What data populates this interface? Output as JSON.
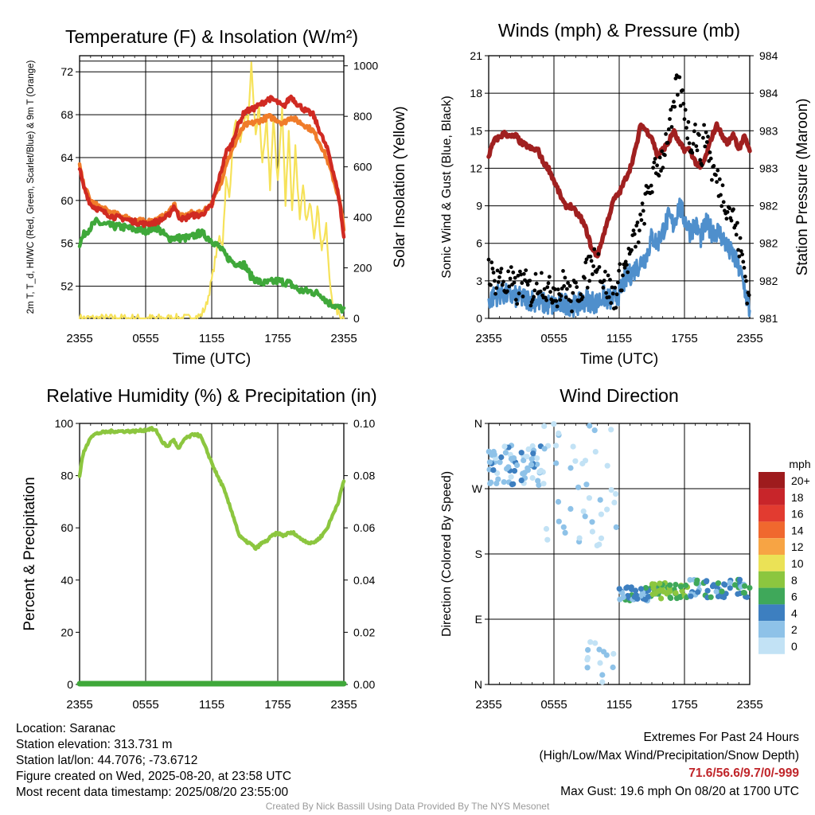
{
  "chart_data": [
    {
      "type": "line",
      "title": "Temperature (F) & Insolation (W/m²)",
      "xlabel": "Time (UTC)",
      "ylabel_left": "2m T, T_d, HI/WC (Red, Green, Scarlet/Blue) & 9m T (Orange)",
      "ylabel_right": "Solar Insolation (Yellow)",
      "x_ticks": [
        "2355",
        "0555",
        "1155",
        "1755",
        "2355"
      ],
      "y_ticks": [
        52,
        56,
        60,
        64,
        68,
        72
      ],
      "y2_ticks": [
        0,
        200,
        400,
        600,
        800,
        1000
      ],
      "ylim": [
        49,
        73.5
      ],
      "y2lim": [
        0,
        1040
      ],
      "x_hours_range": [
        0,
        24
      ],
      "colors": {
        "temp": "#d02a22",
        "temp9m": "#f07c2a",
        "dewpoint": "#3fa83a",
        "solar": "#f6e25a"
      },
      "series": [
        {
          "name": "2m T",
          "color": "#d02a22",
          "x": [
            0,
            0.3,
            1,
            2,
            3,
            4,
            5,
            6,
            7,
            8,
            8.6,
            9,
            9.5,
            10,
            11,
            12,
            12.8,
            13.3,
            13.8,
            14.3,
            15,
            15.7,
            16.5,
            17.2,
            17.8,
            18.5,
            19.2,
            19.8,
            20.5,
            21.2,
            22,
            22.6,
            23.2,
            23.6,
            24
          ],
          "y": [
            63,
            61.5,
            59.6,
            59,
            58.5,
            58.3,
            58,
            57.8,
            58,
            58.5,
            59.5,
            58.5,
            58.2,
            58.6,
            58.6,
            59.5,
            62.5,
            64.5,
            65.2,
            66.8,
            68.3,
            68.5,
            69,
            69.5,
            69.3,
            68.7,
            69.7,
            69,
            68.4,
            68,
            66,
            64.5,
            62,
            60,
            56.5
          ]
        },
        {
          "name": "9m T",
          "color": "#f07c2a",
          "x": [
            0,
            0.3,
            1,
            2,
            3,
            4,
            5,
            6,
            7,
            8,
            8.6,
            9,
            9.5,
            10,
            11,
            12,
            12.8,
            13.3,
            13.8,
            14.3,
            15,
            15.7,
            16.5,
            17.2,
            17.8,
            18.5,
            19.2,
            19.8,
            20.5,
            21.2,
            22,
            22.6,
            23.2,
            23.6,
            24
          ],
          "y": [
            63.2,
            61.7,
            59.9,
            59.3,
            58.8,
            58.5,
            58.2,
            58,
            58.2,
            58.7,
            59.7,
            58.7,
            58.4,
            58.8,
            58.8,
            59.7,
            61.5,
            63.5,
            64.5,
            65.8,
            67,
            67.2,
            67.5,
            67.8,
            67.6,
            67.2,
            67.8,
            67.4,
            67,
            66.5,
            65,
            63.5,
            61.5,
            60,
            57.5
          ]
        },
        {
          "name": "2m Td",
          "color": "#3fa83a",
          "x": [
            0,
            0.5,
            1,
            1.5,
            2,
            3,
            4,
            5,
            6,
            7,
            8,
            9,
            10,
            11,
            12,
            12.8,
            13.3,
            14,
            15,
            15.5,
            16,
            16.5,
            17,
            18,
            19,
            20,
            21,
            22,
            22.5,
            23,
            23.5,
            24
          ],
          "y": [
            56,
            57,
            57.5,
            58,
            57.8,
            57.6,
            57.5,
            57.3,
            57.2,
            57.5,
            56.5,
            56.5,
            56.5,
            57,
            56.3,
            55.5,
            54.8,
            54.2,
            54,
            53,
            52.6,
            52.3,
            52.3,
            52.5,
            52.3,
            51.6,
            51.5,
            51.2,
            50.5,
            50.3,
            50,
            49.8
          ]
        },
        {
          "name": "Solar Insolation",
          "color": "#f6e25a",
          "axis": "right",
          "x": [
            0,
            10,
            11,
            11.5,
            12,
            12.3,
            12.7,
            13,
            13.3,
            13.6,
            14,
            14.3,
            14.6,
            15,
            15.3,
            15.6,
            16,
            16.3,
            16.6,
            17,
            17.3,
            17.6,
            18,
            18.4,
            18.7,
            19,
            19.3,
            19.6,
            20,
            20.3,
            20.6,
            21,
            21.3,
            21.6,
            22,
            22.4,
            22.7,
            23,
            23.5,
            24
          ],
          "y": [
            0,
            0,
            10,
            50,
            150,
            230,
            320,
            300,
            550,
            480,
            750,
            780,
            680,
            800,
            780,
            1000,
            720,
            850,
            600,
            780,
            520,
            780,
            550,
            830,
            450,
            750,
            420,
            680,
            380,
            520,
            380,
            460,
            330,
            440,
            280,
            360,
            150,
            60,
            20,
            0
          ]
        }
      ]
    },
    {
      "type": "line",
      "title": "Winds (mph) & Pressure (mb)",
      "xlabel": "Time (UTC)",
      "ylabel_left": "Sonic Wind & Gust (Blue, Black)",
      "ylabel_right": "Station Pressure (Maroon)",
      "x_ticks": [
        "2355",
        "0555",
        "1155",
        "1755",
        "2355"
      ],
      "y_ticks": [
        0,
        3,
        6,
        9,
        12,
        15,
        18,
        21
      ],
      "y2_ticks": [
        "981",
        "982",
        "982",
        "982",
        "983",
        "983",
        "984",
        "984"
      ],
      "ylim": [
        0,
        21
      ],
      "colors": {
        "wind": "#4f8fcc",
        "gust": "#000000",
        "pressure": "#a02020"
      },
      "series": [
        {
          "name": "Sonic Wind",
          "color": "#4f8fcc",
          "x": [
            0,
            1,
            2,
            3,
            4,
            5,
            6,
            7,
            8,
            9,
            10,
            10.5,
            11,
            11.5,
            12,
            12.5,
            13,
            13.5,
            14,
            14.5,
            15,
            15.5,
            16,
            16.5,
            17,
            17.5,
            18,
            18.5,
            19,
            19.5,
            20,
            20.5,
            21,
            21.5,
            22,
            22.5,
            23,
            23.5,
            24
          ],
          "y": [
            1.5,
            2,
            1.8,
            1.6,
            1.5,
            1.2,
            1,
            1.2,
            1,
            1.5,
            1.2,
            1.8,
            1.5,
            1.5,
            2,
            3,
            3.5,
            4,
            4.5,
            5,
            6.5,
            6,
            7,
            8,
            7.5,
            9,
            8,
            7,
            7.5,
            6.5,
            7.5,
            7,
            7,
            6.5,
            5.5,
            5,
            4,
            2.5,
            0.5
          ]
        },
        {
          "name": "Gust",
          "color": "#000000",
          "x": [
            0,
            0.5,
            1,
            1.5,
            2,
            2.5,
            3,
            3.5,
            4,
            4.5,
            5,
            5.5,
            6,
            6.5,
            7,
            7.5,
            8,
            8.5,
            9,
            9.5,
            10,
            10.5,
            11,
            11.5,
            12,
            12.5,
            13,
            13.5,
            14,
            14.5,
            15,
            15.5,
            16,
            16.5,
            17,
            17.3,
            17.6,
            18,
            18.5,
            19,
            19.5,
            20,
            20.5,
            21,
            21.5,
            22,
            22.5,
            23,
            23.5,
            24
          ],
          "y": [
            4,
            3,
            3.5,
            2.5,
            3,
            2,
            3,
            2.5,
            2,
            3,
            3,
            2,
            2.5,
            2,
            3,
            1.5,
            2,
            2.5,
            3.5,
            4.5,
            5,
            3,
            2.5,
            1.5,
            3,
            4,
            5,
            6.5,
            7.5,
            9.5,
            11,
            12,
            13,
            15,
            16,
            19,
            18,
            17,
            14,
            15,
            13,
            15,
            12,
            11,
            10,
            9,
            8,
            6,
            4,
            1
          ]
        },
        {
          "name": "Station Pressure",
          "color": "#a02020",
          "axis": "right",
          "x": [
            0,
            0.5,
            1,
            1.5,
            2,
            2.5,
            3,
            3.5,
            4,
            4.5,
            5,
            5.5,
            6,
            6.5,
            7,
            7.5,
            8,
            8.5,
            9,
            9.5,
            10,
            10.5,
            11,
            11.5,
            12,
            12.5,
            13,
            13.5,
            14,
            14.5,
            15,
            15.5,
            16,
            16.5,
            17,
            17.5,
            18,
            18.5,
            19,
            19.5,
            20,
            20.5,
            21,
            21.5,
            22,
            22.5,
            23,
            23.5,
            24
          ],
          "y": [
            13,
            14.2,
            14.5,
            14.8,
            14.5,
            14.6,
            14,
            13.8,
            13.5,
            13.5,
            12.5,
            12,
            11,
            10,
            9,
            9,
            8.5,
            8,
            7,
            5.5,
            5,
            6.5,
            8,
            9.5,
            10,
            11,
            12,
            13.5,
            15.5,
            15,
            14.5,
            13,
            13.5,
            14,
            15,
            14,
            13.5,
            13.5,
            12.5,
            12,
            13,
            14.5,
            15.5,
            14.5,
            14,
            14.8,
            13.5,
            14.5,
            13.5
          ]
        }
      ]
    },
    {
      "type": "line",
      "title": "Relative Humidity (%) & Precipitation (in)",
      "ylabel_left": "Percent & Precipitation",
      "x_ticks": [
        "2355",
        "0555",
        "1155",
        "1755",
        "2355"
      ],
      "y_ticks": [
        0,
        20,
        40,
        60,
        80,
        100
      ],
      "y2_ticks": [
        "0.00",
        "0.02",
        "0.04",
        "0.06",
        "0.08",
        "0.10"
      ],
      "ylim": [
        0,
        100
      ],
      "colors": {
        "rh": "#8cc63f",
        "precip": "#3fa83a"
      },
      "series": [
        {
          "name": "Relative Humidity",
          "color": "#8cc63f",
          "x": [
            0,
            0.3,
            0.7,
            1,
            1.5,
            2,
            3,
            4,
            5,
            6,
            6.5,
            7,
            7.5,
            8,
            8.5,
            9,
            9.5,
            10,
            10.5,
            11,
            11.5,
            12,
            12.5,
            13,
            13.5,
            14,
            14.5,
            15,
            15.5,
            16,
            16.5,
            17,
            17.5,
            18,
            18.5,
            19,
            19.5,
            20,
            20.5,
            21,
            21.5,
            22,
            22.5,
            23,
            23.5,
            24
          ],
          "y": [
            80,
            88,
            92,
            95,
            96,
            96.5,
            97,
            97,
            97,
            97.5,
            98,
            97,
            93,
            91,
            94,
            90,
            94,
            95,
            96,
            95,
            90,
            85,
            80,
            76,
            70,
            64,
            57,
            55,
            54,
            52,
            54,
            55,
            57,
            58,
            57,
            58,
            58,
            56,
            55,
            54,
            55,
            57,
            60,
            65,
            70,
            78
          ]
        },
        {
          "name": "Precipitation",
          "color": "#3fa83a",
          "axis": "right",
          "x": [
            0,
            24
          ],
          "y": [
            0,
            0
          ]
        }
      ]
    },
    {
      "type": "scatter",
      "title": "Wind Direction",
      "ylabel_left": "Direction (Colored By Speed)",
      "x_ticks": [
        "2355",
        "0555",
        "1155",
        "1755",
        "2355"
      ],
      "y_ticks": [
        "N",
        "E",
        "S",
        "W",
        "N"
      ],
      "legend_title": "mph",
      "legend": [
        {
          "label": "20+",
          "color": "#9e1b1d"
        },
        {
          "label": "18",
          "color": "#c8252a"
        },
        {
          "label": "16",
          "color": "#e23b30"
        },
        {
          "label": "14",
          "color": "#f0682e"
        },
        {
          "label": "12",
          "color": "#f7a444"
        },
        {
          "label": "10",
          "color": "#ebe256"
        },
        {
          "label": "8",
          "color": "#8cc63f"
        },
        {
          "label": "6",
          "color": "#3fa85a"
        },
        {
          "label": "4",
          "color": "#3d7fc0"
        },
        {
          "label": "2",
          "color": "#8ec2e8"
        },
        {
          "label": "0",
          "color": "#c2e2f5"
        }
      ],
      "clusters": [
        {
          "x_range": [
            0,
            5
          ],
          "deg_range": [
            275,
            330
          ],
          "speed": 2,
          "n": 70
        },
        {
          "x_range": [
            5,
            12
          ],
          "deg_range": [
            180,
            360
          ],
          "speed": 1,
          "n": 45
        },
        {
          "x_range": [
            9,
            11.5
          ],
          "deg_range": [
            0,
            60
          ],
          "speed": 1,
          "n": 14
        },
        {
          "x_range": [
            12,
            15.5
          ],
          "deg_range": [
            115,
            135
          ],
          "speed": 4,
          "n": 40
        },
        {
          "x_range": [
            15,
            18.5
          ],
          "deg_range": [
            118,
            140
          ],
          "speed": 7,
          "n": 45
        },
        {
          "x_range": [
            18.5,
            24
          ],
          "deg_range": [
            120,
            145
          ],
          "speed": 4,
          "n": 55
        }
      ]
    }
  ],
  "info": {
    "location": "Location: Saranac",
    "elevation": "Station elevation: 313.731 m",
    "latlon": "Station lat/lon: 44.7076; -73.6712",
    "created": "Figure created on Wed, 2025-08-20, at 23:58 UTC",
    "recent": "Most recent data timestamp: 2025/08/20 23:55:00"
  },
  "extremes": {
    "title": "Extremes For Past 24 Hours",
    "subtitle": "(High/Low/Max Wind/Precipitation/Snow Depth)",
    "values": "71.6/56.6/9.7/0/-999",
    "max_gust": "Max Gust: 19.6 mph On 08/20 at 1700 UTC"
  },
  "credit": "Created By Nick Bassill Using Data Provided By The NYS Mesonet"
}
